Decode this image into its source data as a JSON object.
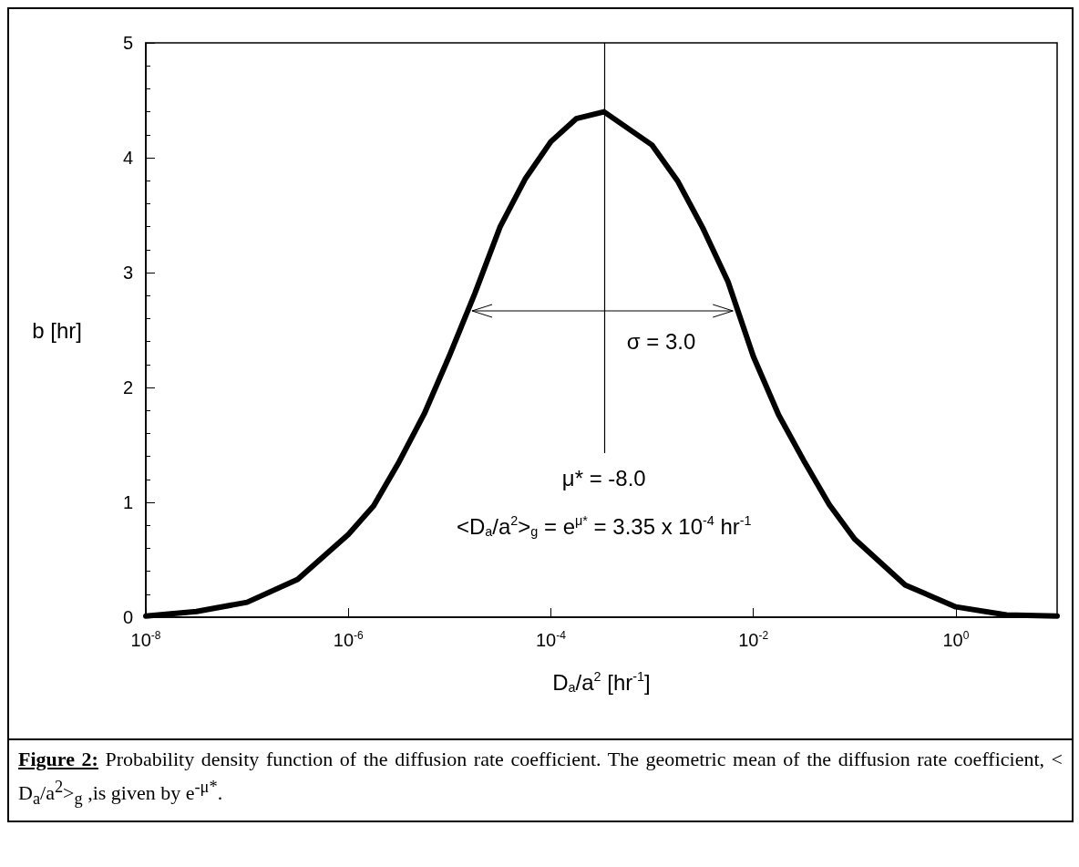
{
  "chart_data": {
    "type": "line",
    "xlabel": "D$_{a}$/a$^{2}$ [hr$^{-1}$]",
    "ylabel": "b [hr]",
    "log": "x",
    "xlim": [
      1e-08,
      10
    ],
    "xticks": [
      {
        "value": 1e-08,
        "label": "10$^{-8}$"
      },
      {
        "value": 1e-06,
        "label": "10$^{-6}$"
      },
      {
        "value": 0.0001,
        "label": "10$^{-4}$"
      },
      {
        "value": 0.01,
        "label": "10$^{-2}$"
      },
      {
        "value": 1,
        "label": "10$^{0}$"
      }
    ],
    "ylim": [
      0,
      5
    ],
    "yticks": [
      0,
      1,
      2,
      3,
      4,
      5
    ],
    "grid": false,
    "marker": "none",
    "line_style": "solid",
    "x": [
      1e-08,
      3.16e-08,
      1e-07,
      3.16e-07,
      1e-06,
      1.78e-06,
      3.16e-06,
      5.62e-06,
      1e-05,
      1.78e-05,
      3.16e-05,
      5.62e-05,
      0.0001,
      0.000178,
      0.000335,
      0.001,
      0.00178,
      0.00316,
      0.00562,
      0.01,
      0.0178,
      0.0316,
      0.0562,
      0.1,
      0.316,
      1,
      3.16,
      10
    ],
    "series": [
      {
        "color": "#000000",
        "values": [
          0.01,
          0.05,
          0.13,
          0.33,
          0.72,
          0.97,
          1.35,
          1.77,
          2.28,
          2.82,
          3.4,
          3.82,
          4.14,
          4.34,
          4.4,
          4.11,
          3.8,
          3.39,
          2.92,
          2.27,
          1.76,
          1.36,
          0.98,
          0.68,
          0.28,
          0.09,
          0.02,
          0.01
        ]
      }
    ],
    "ref_lines": [
      {
        "axis": "x",
        "value": 0.000335,
        "color": "#000000"
      }
    ],
    "annotations": [
      "σ = 3.0",
      "μ* = -8.0",
      "<D$_{a}$/a$^{2}$>$_{g}$ = e$^{μ*}$ = 3.35 x 10$^{-4}$ hr$^{-1}$",
      "Figure 2: Probability density function of the diffusion rate coefficient.  The geometric mean of the diffusion rate coefficient, < D$_{a}$/a$^{2}$>$_{g}$ ,is given by e$^{-μ*}$."
    ]
  }
}
